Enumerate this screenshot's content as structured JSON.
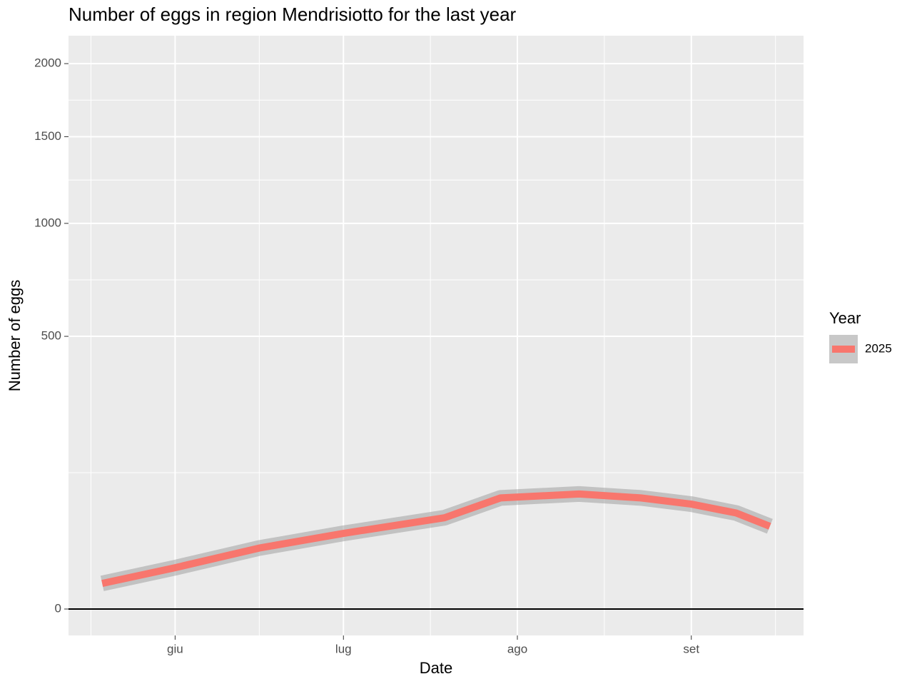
{
  "chart_data": {
    "type": "line",
    "title": "Number of eggs in region Mendrisiotto for the last year",
    "x_label": "Date",
    "y_label": "Number of eggs",
    "y_scale": "sqrt",
    "x": [
      -13,
      0,
      15,
      30,
      48,
      58,
      72,
      83,
      92,
      100,
      106
    ],
    "series": [
      {
        "name": "2025",
        "color": "#f8766d",
        "values": [
          4.4,
          11.5,
          25,
          38.5,
          56,
          83,
          89,
          83,
          74,
          62,
          46
        ]
      }
    ],
    "xlim": [
      -19,
      112
    ],
    "xticks": [
      {
        "value": 0,
        "label": "giu"
      },
      {
        "value": 30,
        "label": "lug"
      },
      {
        "value": 61,
        "label": "ago"
      },
      {
        "value": 92,
        "label": "set"
      }
    ],
    "ylim": [
      0,
      2210
    ],
    "yticks": [
      0,
      500,
      1000,
      1500,
      2000
    ],
    "legend_title": "Year",
    "legend_position": "right",
    "grid": true
  }
}
